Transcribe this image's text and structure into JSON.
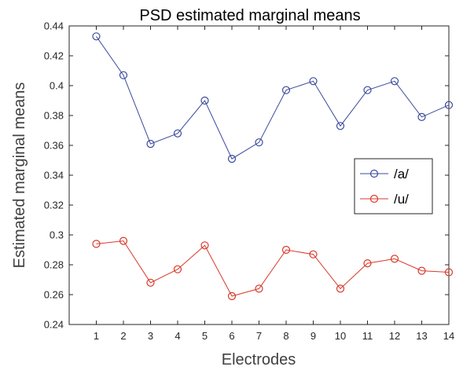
{
  "chart_data": {
    "type": "line",
    "title": "PSD estimated marginal means",
    "xlabel": "Electrodes",
    "ylabel": "Estimated marginal means",
    "x": [
      1,
      2,
      3,
      4,
      5,
      6,
      7,
      8,
      9,
      10,
      11,
      12,
      13,
      14
    ],
    "xlim": [
      0,
      14
    ],
    "ylim": [
      0.24,
      0.44
    ],
    "yticks": [
      "0.24",
      "0.26",
      "0.28",
      "0.3",
      "0.32",
      "0.34",
      "0.36",
      "0.38",
      "0.4",
      "0.42",
      "0.44"
    ],
    "xticks": [
      "1",
      "2",
      "3",
      "4",
      "5",
      "6",
      "7",
      "8",
      "9",
      "10",
      "11",
      "12",
      "13",
      "14"
    ],
    "grid": false,
    "legend_position": "right",
    "series": [
      {
        "name": "/a/",
        "color": "#3b4a9c",
        "marker": "circle",
        "values": [
          0.433,
          0.407,
          0.361,
          0.368,
          0.39,
          0.351,
          0.362,
          0.397,
          0.403,
          0.373,
          0.397,
          0.403,
          0.379,
          0.387
        ]
      },
      {
        "name": "/u/",
        "color": "#d9382a",
        "marker": "circle",
        "values": [
          0.294,
          0.296,
          0.268,
          0.277,
          0.293,
          0.259,
          0.264,
          0.29,
          0.287,
          0.264,
          0.281,
          0.284,
          0.276,
          0.275
        ]
      }
    ]
  }
}
